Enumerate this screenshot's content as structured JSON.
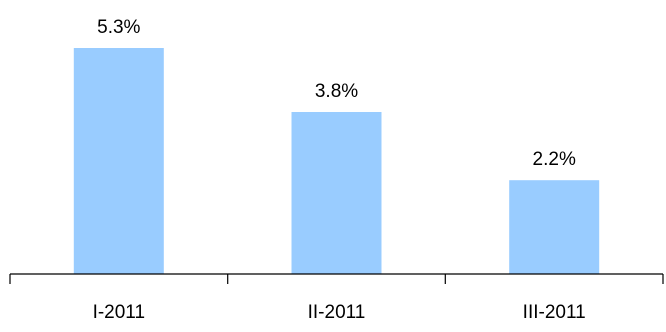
{
  "chart_data": {
    "type": "bar",
    "categories": [
      "I-2011",
      "II-2011",
      "III-2011"
    ],
    "values": [
      5.3,
      3.8,
      2.2
    ],
    "data_labels": [
      "5.3%",
      "3.8%",
      "2.2%"
    ],
    "title": "",
    "xlabel": "",
    "ylabel": "",
    "ylim": [
      0,
      5.3
    ],
    "grid": false,
    "legend": "none",
    "colors": {
      "bar": "#99CCFF",
      "axis": "#000000",
      "text": "#000000"
    }
  }
}
